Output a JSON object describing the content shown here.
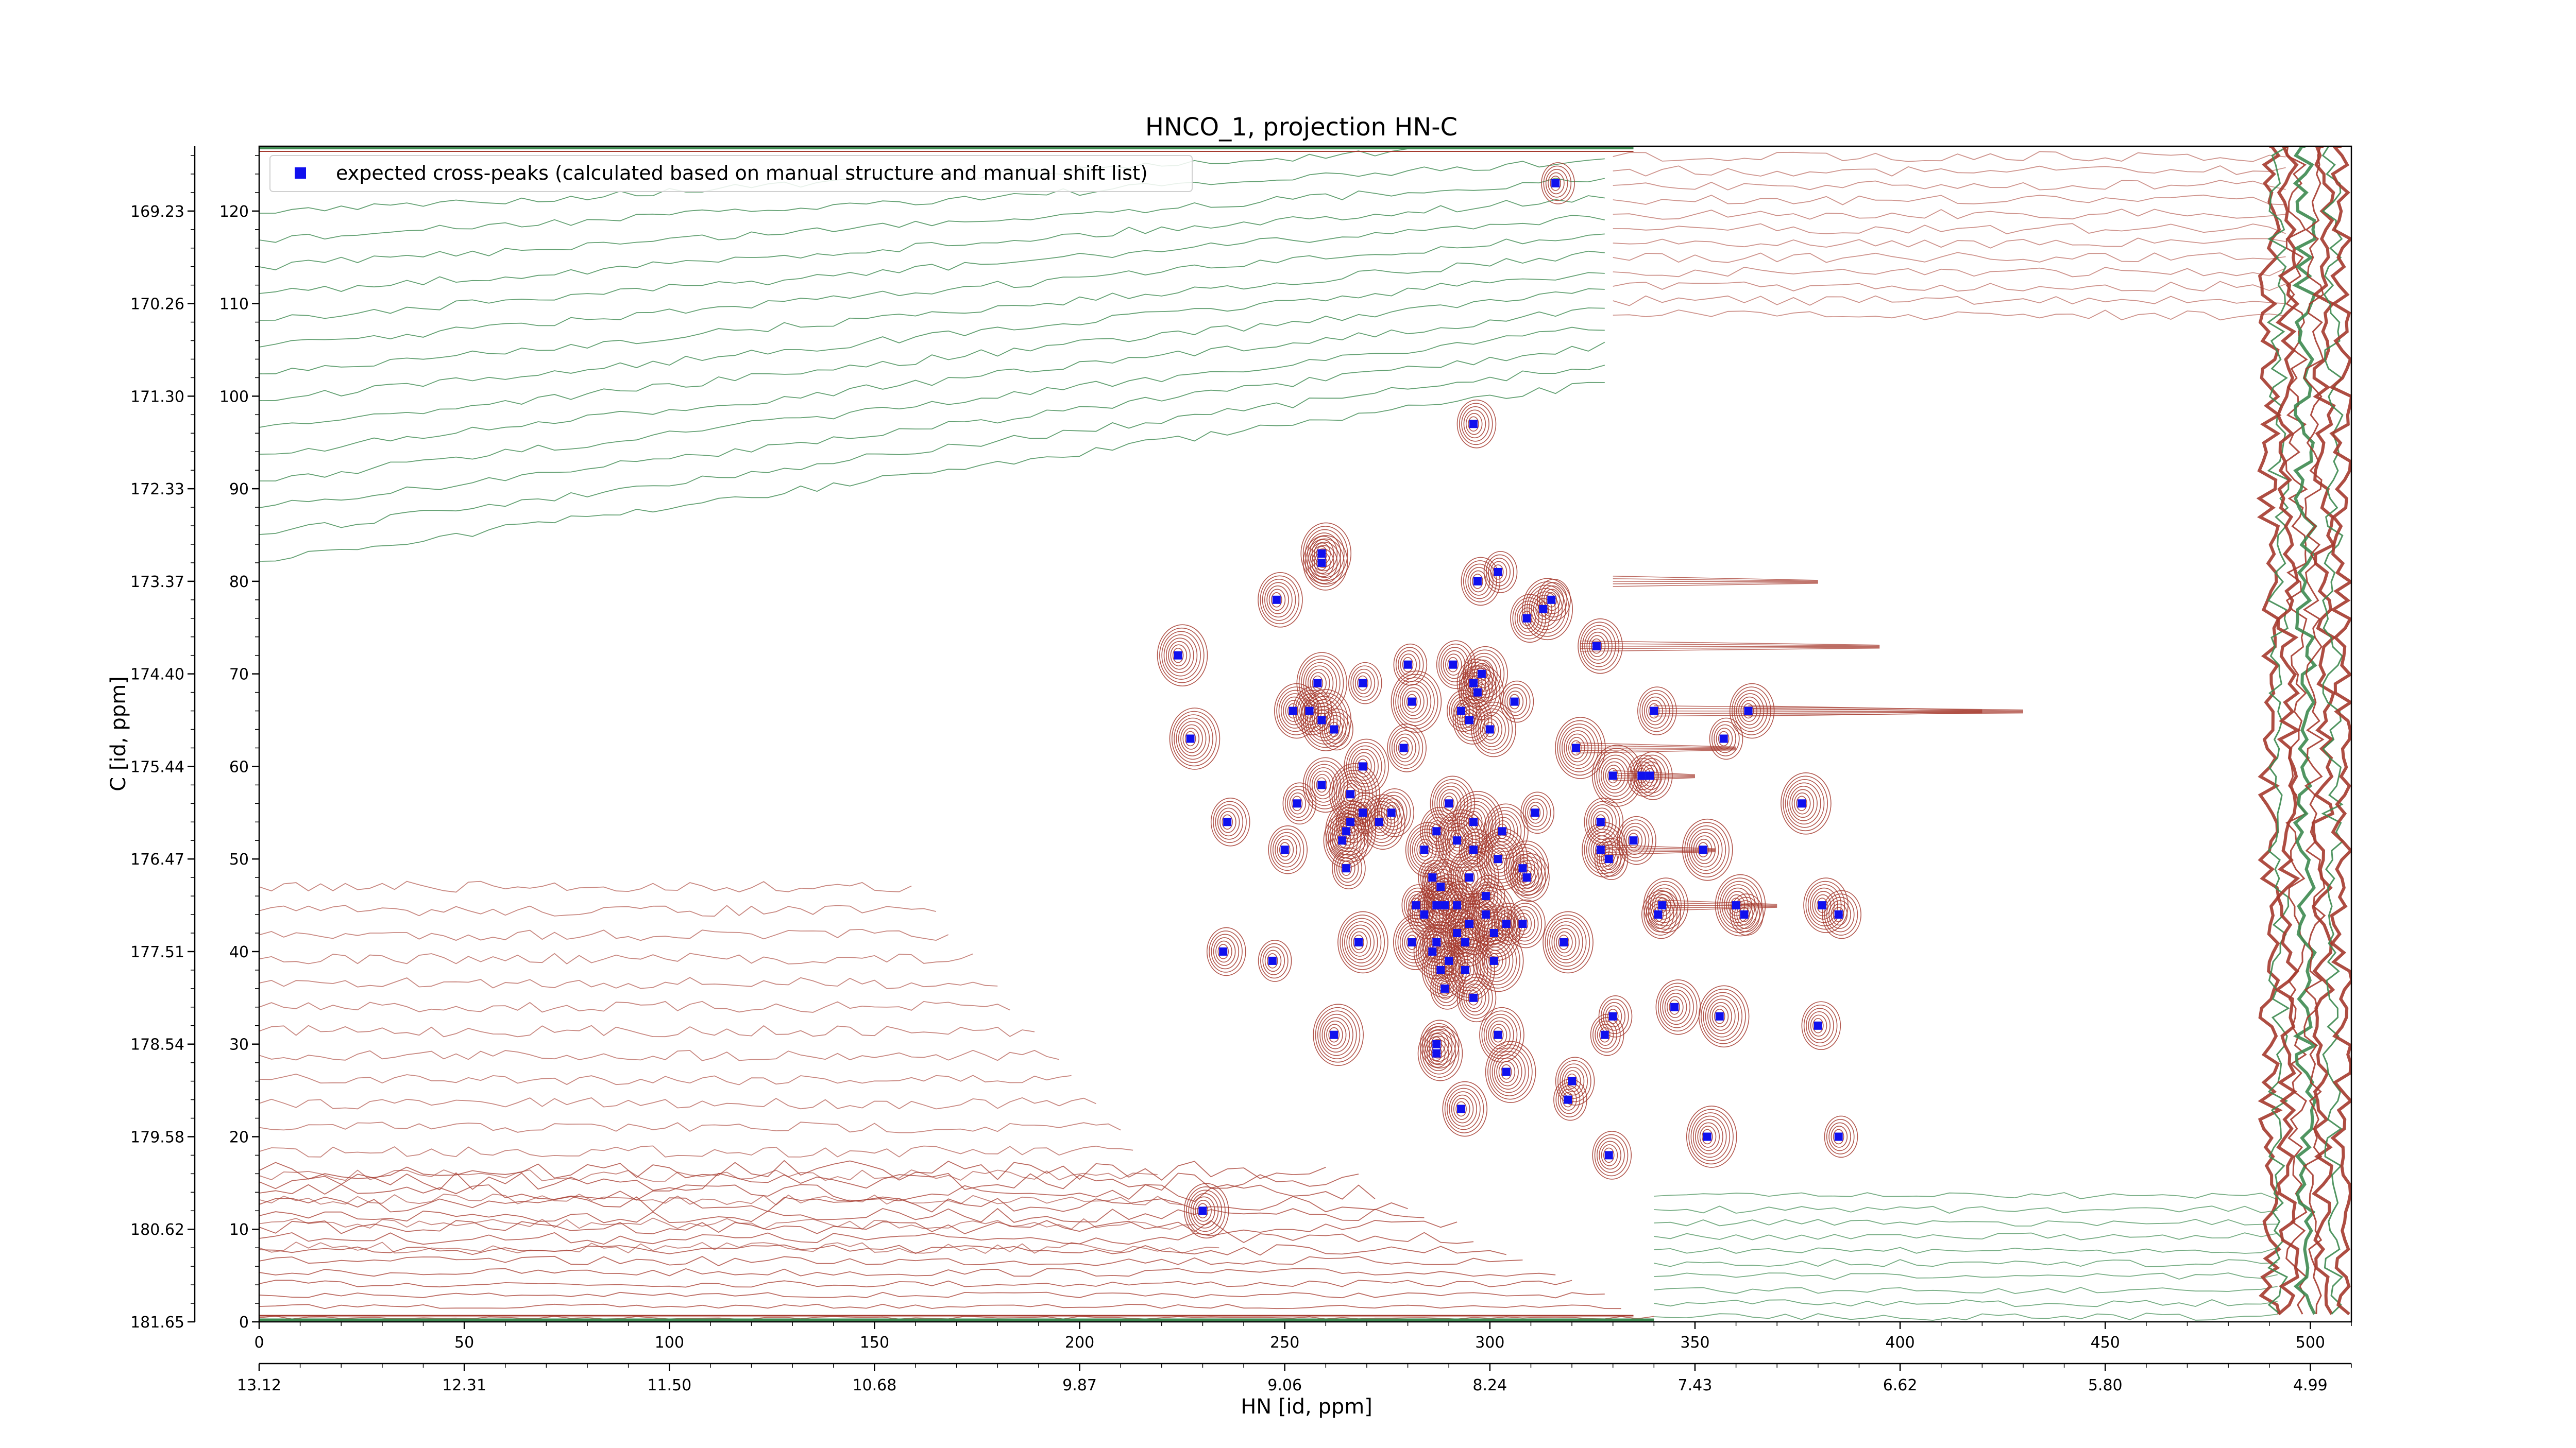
{
  "chart_data": {
    "type": "scatter",
    "title": "HNCO_1, projection HN-C",
    "xlabel": "HN [id, ppm]",
    "ylabel": "C [id, ppm]",
    "x_index_range": [
      0,
      510
    ],
    "y_index_range": [
      0,
      127
    ],
    "x_index_ticks": [
      "0",
      "50",
      "100",
      "150",
      "200",
      "250",
      "300",
      "350",
      "400",
      "450",
      "500"
    ],
    "x_ppm_ticks": [
      "13.12",
      "12.31",
      "11.50",
      "10.68",
      "9.87",
      "9.06",
      "8.24",
      "7.43",
      "6.62",
      "5.80",
      "4.99"
    ],
    "y_index_ticks": [
      "0",
      "10",
      "20",
      "30",
      "40",
      "50",
      "60",
      "70",
      "80",
      "90",
      "100",
      "110",
      "120"
    ],
    "y_ppm_ticks": [
      "181.65",
      "180.62",
      "179.58",
      "178.54",
      "177.51",
      "176.47",
      "175.44",
      "174.40",
      "173.37",
      "172.33",
      "171.30",
      "170.26",
      "169.23"
    ],
    "legend": {
      "placement": "upper-left",
      "entries": [
        "expected cross-peaks (calculated based on manual structure and manual shift list)"
      ]
    },
    "grid": false,
    "colors": {
      "marker": "#1010ee",
      "positive_contour": "#a53a2e",
      "negative_contour": "#3d8a50",
      "axes": "#000000"
    },
    "series": [
      {
        "name": "expected cross-peaks (calculated based on manual structure and manual shift list)",
        "points": [
          [
            316,
            123
          ],
          [
            296,
            97
          ],
          [
            259,
            82
          ],
          [
            259,
            83
          ],
          [
            302,
            81
          ],
          [
            297,
            80
          ],
          [
            248,
            78
          ],
          [
            313,
            77
          ],
          [
            315,
            78
          ],
          [
            309,
            76
          ],
          [
            326,
            73
          ],
          [
            224,
            72
          ],
          [
            280,
            71
          ],
          [
            291,
            71
          ],
          [
            298,
            70
          ],
          [
            258,
            69
          ],
          [
            269,
            69
          ],
          [
            296,
            69
          ],
          [
            297,
            68
          ],
          [
            281,
            67
          ],
          [
            306,
            67
          ],
          [
            256,
            66
          ],
          [
            252,
            66
          ],
          [
            259,
            65
          ],
          [
            293,
            66
          ],
          [
            295,
            65
          ],
          [
            300,
            64
          ],
          [
            227,
            63
          ],
          [
            357,
            63
          ],
          [
            340,
            66
          ],
          [
            363,
            66
          ],
          [
            321,
            62
          ],
          [
            262,
            64
          ],
          [
            279,
            62
          ],
          [
            269,
            60
          ],
          [
            330,
            59
          ],
          [
            337,
            59
          ],
          [
            339,
            59
          ],
          [
            259,
            58
          ],
          [
            266,
            57
          ],
          [
            253,
            56
          ],
          [
            327,
            54
          ],
          [
            290,
            56
          ],
          [
            376,
            56
          ],
          [
            269,
            55
          ],
          [
            276,
            55
          ],
          [
            273,
            54
          ],
          [
            265,
            53
          ],
          [
            266,
            54
          ],
          [
            236,
            54
          ],
          [
            264,
            52
          ],
          [
            296,
            54
          ],
          [
            311,
            55
          ],
          [
            287,
            53
          ],
          [
            303,
            53
          ],
          [
            292,
            52
          ],
          [
            296,
            51
          ],
          [
            250,
            51
          ],
          [
            284,
            51
          ],
          [
            302,
            50
          ],
          [
            329,
            50
          ],
          [
            335,
            52
          ],
          [
            327,
            51
          ],
          [
            352,
            51
          ],
          [
            265,
            49
          ],
          [
            309,
            48
          ],
          [
            288,
            47
          ],
          [
            295,
            48
          ],
          [
            286,
            48
          ],
          [
            292,
            45
          ],
          [
            308,
            49
          ],
          [
            299,
            44
          ],
          [
            282,
            45
          ],
          [
            284,
            44
          ],
          [
            287,
            45
          ],
          [
            289,
            45
          ],
          [
            299,
            46
          ],
          [
            341,
            44
          ],
          [
            342,
            45
          ],
          [
            360,
            45
          ],
          [
            362,
            44
          ],
          [
            385,
            44
          ],
          [
            381,
            45
          ],
          [
            295,
            43
          ],
          [
            304,
            43
          ],
          [
            308,
            43
          ],
          [
            301,
            42
          ],
          [
            318,
            41
          ],
          [
            287,
            41
          ],
          [
            292,
            42
          ],
          [
            281,
            41
          ],
          [
            268,
            41
          ],
          [
            290,
            39
          ],
          [
            294,
            41
          ],
          [
            286,
            40
          ],
          [
            294,
            38
          ],
          [
            247,
            39
          ],
          [
            235,
            40
          ],
          [
            288,
            38
          ],
          [
            301,
            39
          ],
          [
            289,
            36
          ],
          [
            296,
            35
          ],
          [
            345,
            34
          ],
          [
            356,
            33
          ],
          [
            330,
            33
          ],
          [
            380,
            32
          ],
          [
            302,
            31
          ],
          [
            262,
            31
          ],
          [
            328,
            31
          ],
          [
            287,
            30
          ],
          [
            287,
            29
          ],
          [
            304,
            27
          ],
          [
            319,
            24
          ],
          [
            320,
            26
          ],
          [
            293,
            23
          ],
          [
            353,
            20
          ],
          [
            385,
            20
          ],
          [
            329,
            18
          ],
          [
            230,
            12
          ]
        ]
      }
    ]
  }
}
